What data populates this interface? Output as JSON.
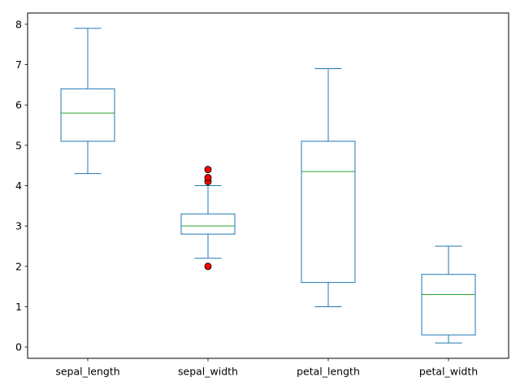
{
  "chart_data": {
    "type": "boxplot",
    "title": "",
    "xlabel": "",
    "ylabel": "",
    "ylim": [
      -0.28,
      8.28
    ],
    "yticks": [
      0,
      1,
      2,
      3,
      4,
      5,
      6,
      7,
      8
    ],
    "grid": false,
    "colors": {
      "box": "#1f77b4",
      "median": "#2ca02c",
      "flier_fill": "#ff0000",
      "flier_edge": "#000000",
      "axis": "#000000"
    },
    "categories": [
      "sepal_length",
      "sepal_width",
      "petal_length",
      "petal_width"
    ],
    "boxes": [
      {
        "name": "sepal_length",
        "whislo": 4.3,
        "q1": 5.1,
        "median": 5.8,
        "q3": 6.4,
        "whishi": 7.9,
        "fliers": []
      },
      {
        "name": "sepal_width",
        "whislo": 2.2,
        "q1": 2.8,
        "median": 3.0,
        "q3": 3.3,
        "whishi": 4.0,
        "fliers": [
          2.0,
          4.1,
          4.2,
          4.4
        ]
      },
      {
        "name": "petal_length",
        "whislo": 1.0,
        "q1": 1.6,
        "median": 4.35,
        "q3": 5.1,
        "whishi": 6.9,
        "fliers": []
      },
      {
        "name": "petal_width",
        "whislo": 0.1,
        "q1": 0.3,
        "median": 1.3,
        "q3": 1.8,
        "whishi": 2.5,
        "fliers": []
      }
    ]
  }
}
